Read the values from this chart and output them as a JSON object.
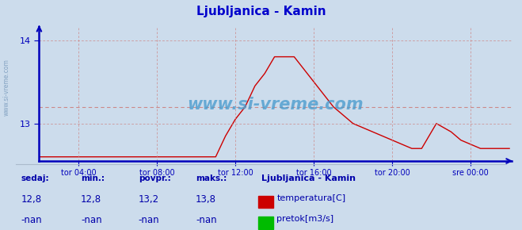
{
  "title": "Ljubljanica - Kamin",
  "title_color": "#0000cc",
  "bg_color": "#ccdcec",
  "plot_bg_color": "#ccdcec",
  "grid_color": "#cc8888",
  "axis_color": "#0000bb",
  "line_color": "#cc0000",
  "ylabel_color": "#0000bb",
  "xlabel_color": "#0000bb",
  "ylim": [
    12.55,
    14.15
  ],
  "yticks": [
    13.0,
    14.0
  ],
  "xlim": [
    0,
    289
  ],
  "xtick_positions": [
    24,
    72,
    120,
    168,
    216,
    264
  ],
  "xtick_labels": [
    "tor 04:00",
    "tor 08:00",
    "tor 12:00",
    "tor 16:00",
    "tor 20:00",
    "sre 00:00"
  ],
  "avg_line_y": 13.2,
  "watermark": "www.si-vreme.com",
  "watermark_color": "#4499cc",
  "legend_title": "Ljubljanica - Kamin",
  "left_text": "www.si-vreme.com",
  "step_x": [
    0,
    108,
    108,
    114,
    114,
    120,
    120,
    126,
    126,
    132,
    132,
    138,
    138,
    141,
    141,
    144,
    144,
    156,
    156,
    162,
    162,
    168,
    168,
    174,
    174,
    180,
    180,
    186,
    186,
    192,
    192,
    198,
    198,
    204,
    204,
    210,
    210,
    216,
    216,
    222,
    222,
    228,
    228,
    234,
    234,
    243,
    243,
    252,
    252,
    258,
    258,
    264,
    264,
    270,
    270,
    276,
    276,
    282,
    282,
    288
  ],
  "step_y": [
    12.6,
    12.6,
    12.6,
    12.85,
    12.85,
    13.05,
    13.05,
    13.2,
    13.2,
    13.45,
    13.45,
    13.6,
    13.6,
    13.7,
    13.7,
    13.8,
    13.8,
    13.8,
    13.8,
    13.65,
    13.65,
    13.5,
    13.5,
    13.35,
    13.35,
    13.2,
    13.2,
    13.1,
    13.1,
    13.0,
    13.0,
    12.95,
    12.95,
    12.9,
    12.9,
    12.85,
    12.85,
    12.8,
    12.8,
    12.75,
    12.75,
    12.7,
    12.7,
    12.7,
    12.7,
    13.0,
    13.0,
    12.9,
    12.9,
    12.8,
    12.8,
    12.75,
    12.75,
    12.7,
    12.7,
    12.7,
    12.7,
    12.7,
    12.7,
    12.7
  ]
}
